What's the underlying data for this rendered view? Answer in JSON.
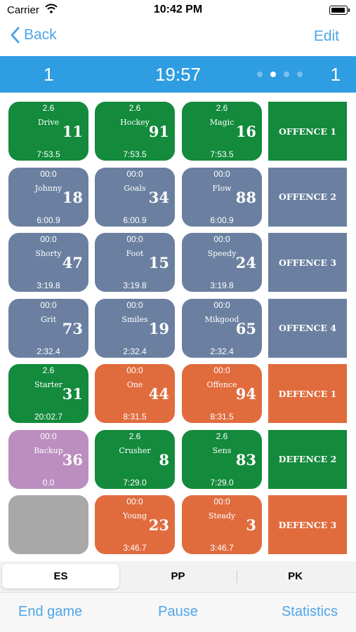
{
  "status": {
    "carrier": "Carrier",
    "time": "10:42 PM"
  },
  "nav": {
    "back_label": "Back",
    "edit_label": "Edit"
  },
  "game": {
    "period": "1",
    "clock": "19:57",
    "score": "1",
    "page_count": 4,
    "active_page": 1
  },
  "rows": [
    {
      "players": [
        {
          "top": "2.6",
          "name": "Drive",
          "number": "11",
          "bottom": "7:53.5",
          "color": "green"
        },
        {
          "top": "2.6",
          "name": "Hockey",
          "number": "91",
          "bottom": "7:53.5",
          "color": "green"
        },
        {
          "top": "2.6",
          "name": "Magic",
          "number": "16",
          "bottom": "7:53.5",
          "color": "green"
        }
      ],
      "line": {
        "label": "OFFENCE 1",
        "color": "green"
      }
    },
    {
      "players": [
        {
          "top": "00:0",
          "name": "Johnny",
          "number": "18",
          "bottom": "6:00.9",
          "color": "slate"
        },
        {
          "top": "00:0",
          "name": "Goals",
          "number": "34",
          "bottom": "6:00.9",
          "color": "slate"
        },
        {
          "top": "00:0",
          "name": "Flow",
          "number": "88",
          "bottom": "6:00.9",
          "color": "slate"
        }
      ],
      "line": {
        "label": "OFFENCE 2",
        "color": "slate"
      }
    },
    {
      "players": [
        {
          "top": "00:0",
          "name": "Shorty",
          "number": "47",
          "bottom": "3:19.8",
          "color": "slate"
        },
        {
          "top": "00:0",
          "name": "Foot",
          "number": "15",
          "bottom": "3:19.8",
          "color": "slate"
        },
        {
          "top": "00:0",
          "name": "Speedy",
          "number": "24",
          "bottom": "3:19.8",
          "color": "slate"
        }
      ],
      "line": {
        "label": "OFFENCE 3",
        "color": "slate"
      }
    },
    {
      "players": [
        {
          "top": "00:0",
          "name": "Grit",
          "number": "73",
          "bottom": "2:32.4",
          "color": "slate"
        },
        {
          "top": "00:0",
          "name": "Smiles",
          "number": "19",
          "bottom": "2:32.4",
          "color": "slate"
        },
        {
          "top": "00:0",
          "name": "Mikgood",
          "number": "65",
          "bottom": "2:32.4",
          "color": "slate"
        }
      ],
      "line": {
        "label": "OFFENCE 4",
        "color": "slate"
      }
    },
    {
      "players": [
        {
          "top": "2.6",
          "name": "Starter",
          "number": "31",
          "bottom": "20:02.7",
          "color": "green"
        },
        {
          "top": "00:0",
          "name": "One",
          "number": "44",
          "bottom": "8:31.5",
          "color": "orange"
        },
        {
          "top": "00:0",
          "name": "Offence",
          "number": "94",
          "bottom": "8:31.5",
          "color": "orange"
        }
      ],
      "line": {
        "label": "DEFENCE 1",
        "color": "orange"
      }
    },
    {
      "players": [
        {
          "top": "00:0",
          "name": "Backup",
          "number": "36",
          "bottom": "0.0",
          "color": "purple"
        },
        {
          "top": "2.6",
          "name": "Crusher",
          "number": "8",
          "bottom": "7:29.0",
          "color": "green"
        },
        {
          "top": "2.6",
          "name": "Sens",
          "number": "83",
          "bottom": "7:29.0",
          "color": "green"
        }
      ],
      "line": {
        "label": "DEFENCE 2",
        "color": "green"
      }
    },
    {
      "players": [
        {
          "top": "",
          "name": "",
          "number": "",
          "bottom": "",
          "color": "grey"
        },
        {
          "top": "00:0",
          "name": "Young",
          "number": "23",
          "bottom": "3:46.7",
          "color": "orange"
        },
        {
          "top": "00:0",
          "name": "Steady",
          "number": "3",
          "bottom": "3:46.7",
          "color": "orange"
        }
      ],
      "line": {
        "label": "DEFENCE 3",
        "color": "orange"
      }
    }
  ],
  "segments": {
    "items": [
      "ES",
      "PP",
      "PK"
    ],
    "selected": "ES"
  },
  "bottom": {
    "end_game": "End game",
    "pause": "Pause",
    "statistics": "Statistics"
  },
  "colors": {
    "accent": "#4ea5e8",
    "clockbar": "#2e9de2",
    "green": "#138a3c",
    "slate": "#6b80a0",
    "orange": "#e06c3e",
    "purple": "#bb8ec0",
    "grey": "#a8a8a8"
  }
}
